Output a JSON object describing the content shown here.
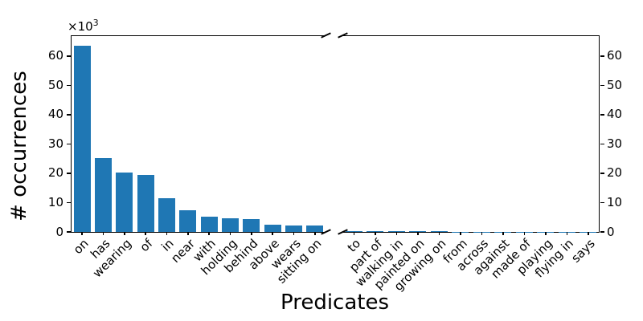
{
  "figure": {
    "offset_base": "×10",
    "offset_exponent": "3",
    "axis_color": "#000000",
    "background_color": "#ffffff",
    "text_color": "#000000"
  },
  "chart_data": {
    "type": "bar",
    "title": "",
    "xlabel": "Predicates",
    "ylabel": "# occurrences",
    "y_offset_text": "×10³",
    "units": "thousands of occurrences",
    "bar_color": "#1f77b4",
    "grid": false,
    "legend": null,
    "ylim": [
      0,
      66.8
    ],
    "yticks": [
      0,
      10,
      20,
      30,
      40,
      50,
      60
    ],
    "broken_x_axis": true,
    "panels": [
      {
        "side": "left",
        "categories": [
          "on",
          "has",
          "wearing",
          "of",
          "in",
          "near",
          "with",
          "holding",
          "behind",
          "above",
          "wears",
          "sitting on"
        ],
        "values": [
          63.4,
          25.2,
          20.2,
          19.4,
          11.4,
          7.4,
          5.3,
          4.6,
          4.5,
          2.4,
          2.2,
          2.2
        ]
      },
      {
        "side": "right",
        "categories": [
          "to",
          "part of",
          "walking in",
          "painted on",
          "growing on",
          "from",
          "across",
          "against",
          "made of",
          "playing",
          "flying in",
          "says"
        ],
        "values": [
          0.2,
          0.2,
          0.2,
          0.2,
          0.2,
          0.1,
          0.1,
          0.1,
          0.1,
          0.1,
          0.1,
          0.1
        ],
        "note": "bars below axis resolution in the rendered image (<0.5k)"
      }
    ]
  }
}
